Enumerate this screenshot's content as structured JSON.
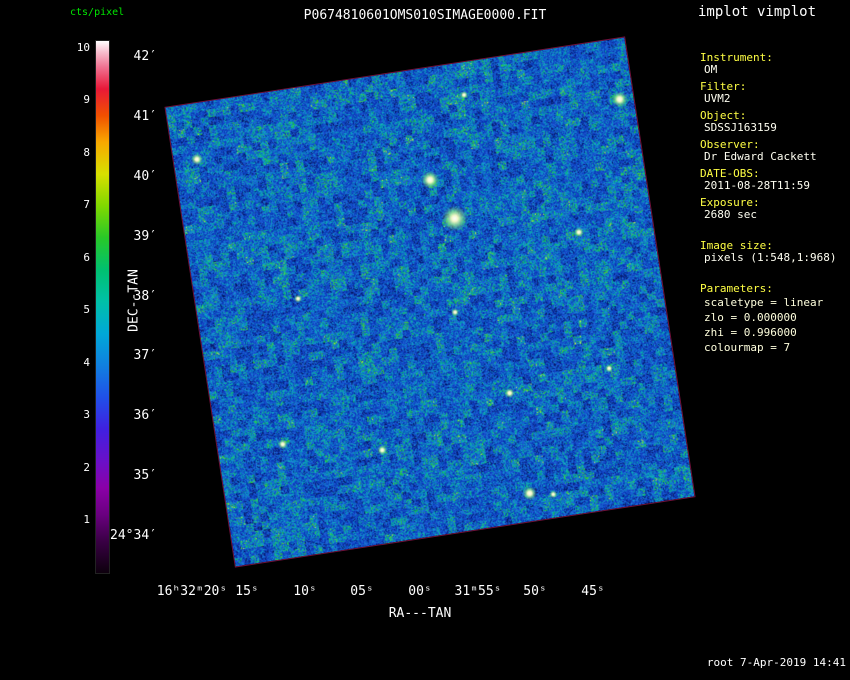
{
  "window": {
    "app_title": "implot vimplot",
    "footer": "root  7-Apr-2019 14:41"
  },
  "title": "P0674810601OMS010SIMAGE0000.FIT",
  "colorbar": {
    "label": "cts/pixel",
    "ticks": [
      "10",
      "9",
      "8",
      "7",
      "6",
      "5",
      "4",
      "3",
      "2",
      "1"
    ],
    "gradient": [
      "#0d000d 0%",
      "#3a0045 6%",
      "#6a0080 11%",
      "#8a00a8 16%",
      "#6a10c8 21%",
      "#4020e0 27%",
      "#2050e8 33%",
      "#1080e0 39%",
      "#00a8d8 45%",
      "#00c0a8 51%",
      "#00c070 57%",
      "#28c828 63%",
      "#80d800 69%",
      "#d8e000 75%",
      "#f8a800 81%",
      "#f05000 86%",
      "#e81838 91%",
      "#f07090 95%",
      "#f8c0d0 98%",
      "#ffffff 100%"
    ]
  },
  "axes": {
    "x": {
      "label": "RA---TAN",
      "ticks": [
        "16ʰ32ᵐ20ˢ",
        "15ˢ",
        "10ˢ",
        "05ˢ",
        "00ˢ",
        "31ᵐ55ˢ",
        "50ˢ",
        "45ˢ"
      ]
    },
    "y": {
      "label": "DEC--TAN",
      "ticks": [
        "42′",
        "41′",
        "40′",
        "39′",
        "38′",
        "37′",
        "36′",
        "35′",
        "24°34′"
      ]
    }
  },
  "info_panel": {
    "fields": [
      {
        "label": "Instrument:",
        "value": "OM"
      },
      {
        "label": "Filter:",
        "value": "UVM2"
      },
      {
        "label": "Object:",
        "value": "SDSSJ163159"
      },
      {
        "label": "Observer:",
        "value": "Dr Edward Cackett"
      },
      {
        "label": "DATE-OBS:",
        "value": "2011-08-28T11:59"
      },
      {
        "label": "Exposure:",
        "value": "2680 sec"
      }
    ],
    "image_size_label": "Image size:",
    "image_size_value": "pixels (1:548,1:968)",
    "parameters_label": "Parameters:",
    "parameters": [
      "scaletype = linear",
      "zlo = 0.000000",
      "zhi = 0.996000",
      "colourmap =  7"
    ]
  },
  "chart_data": {
    "type": "heatmap",
    "title": "P0674810601OMS010SIMAGE0000.FIT",
    "xlabel": "RA---TAN",
    "ylabel": "DEC--TAN",
    "x_tick_labels": [
      "16h32m20s",
      "15s",
      "10s",
      "05s",
      "00s",
      "31m55s",
      "50s",
      "45s"
    ],
    "y_tick_labels": [
      "42'",
      "41'",
      "40'",
      "39'",
      "38'",
      "37'",
      "36'",
      "35'",
      "24°34'"
    ],
    "colorbar_label": "cts/pixel",
    "colorbar_range": [
      0,
      10
    ],
    "scale": {
      "scaletype": "linear",
      "zlo": 0.0,
      "zhi": 0.996,
      "colourmap": 7
    },
    "image_rotation_deg": -8.7,
    "field_description": "speckled sky-noise field, mostly blue with cyan/green grains and sparse bright point sources",
    "noise_palette": [
      {
        "t": 0.16,
        "c": [
          8,
          30,
          110
        ]
      },
      {
        "t": 0.4,
        "c": [
          13,
          60,
          185
        ]
      },
      {
        "t": 0.58,
        "c": [
          25,
          90,
          210
        ]
      },
      {
        "t": 0.7,
        "c": [
          15,
          130,
          205
        ]
      },
      {
        "t": 0.79,
        "c": [
          10,
          165,
          185
        ]
      },
      {
        "t": 0.87,
        "c": [
          15,
          180,
          140
        ]
      },
      {
        "t": 0.93,
        "c": [
          30,
          190,
          80
        ]
      },
      {
        "t": 0.975,
        "c": [
          80,
          210,
          50
        ]
      },
      {
        "t": 1.01,
        "c": [
          200,
          230,
          80
        ]
      }
    ],
    "sources": [
      {
        "x": 0.58,
        "y": 0.33,
        "r": 3.2,
        "halo": 13
      },
      {
        "x": 0.54,
        "y": 0.24,
        "r": 2.6,
        "halo": 9
      },
      {
        "x": 0.97,
        "y": 0.13,
        "r": 2.4,
        "halo": 8
      },
      {
        "x": 0.05,
        "y": 0.12,
        "r": 1.8,
        "halo": 6
      },
      {
        "x": 0.64,
        "y": 0.07,
        "r": 1.4,
        "halo": 4
      },
      {
        "x": 0.84,
        "y": 0.4,
        "r": 1.6,
        "halo": 5
      },
      {
        "x": 0.22,
        "y": 0.45,
        "r": 1.4,
        "halo": 4
      },
      {
        "x": 0.55,
        "y": 0.53,
        "r": 1.4,
        "halo": 4
      },
      {
        "x": 0.64,
        "y": 0.72,
        "r": 1.6,
        "halo": 5
      },
      {
        "x": 0.86,
        "y": 0.7,
        "r": 1.4,
        "halo": 4
      },
      {
        "x": 0.14,
        "y": 0.755,
        "r": 1.5,
        "halo": 5
      },
      {
        "x": 0.35,
        "y": 0.8,
        "r": 1.6,
        "halo": 5
      },
      {
        "x": 0.65,
        "y": 0.94,
        "r": 2.2,
        "halo": 7
      },
      {
        "x": 0.7,
        "y": 0.95,
        "r": 1.3,
        "halo": 4
      }
    ]
  }
}
